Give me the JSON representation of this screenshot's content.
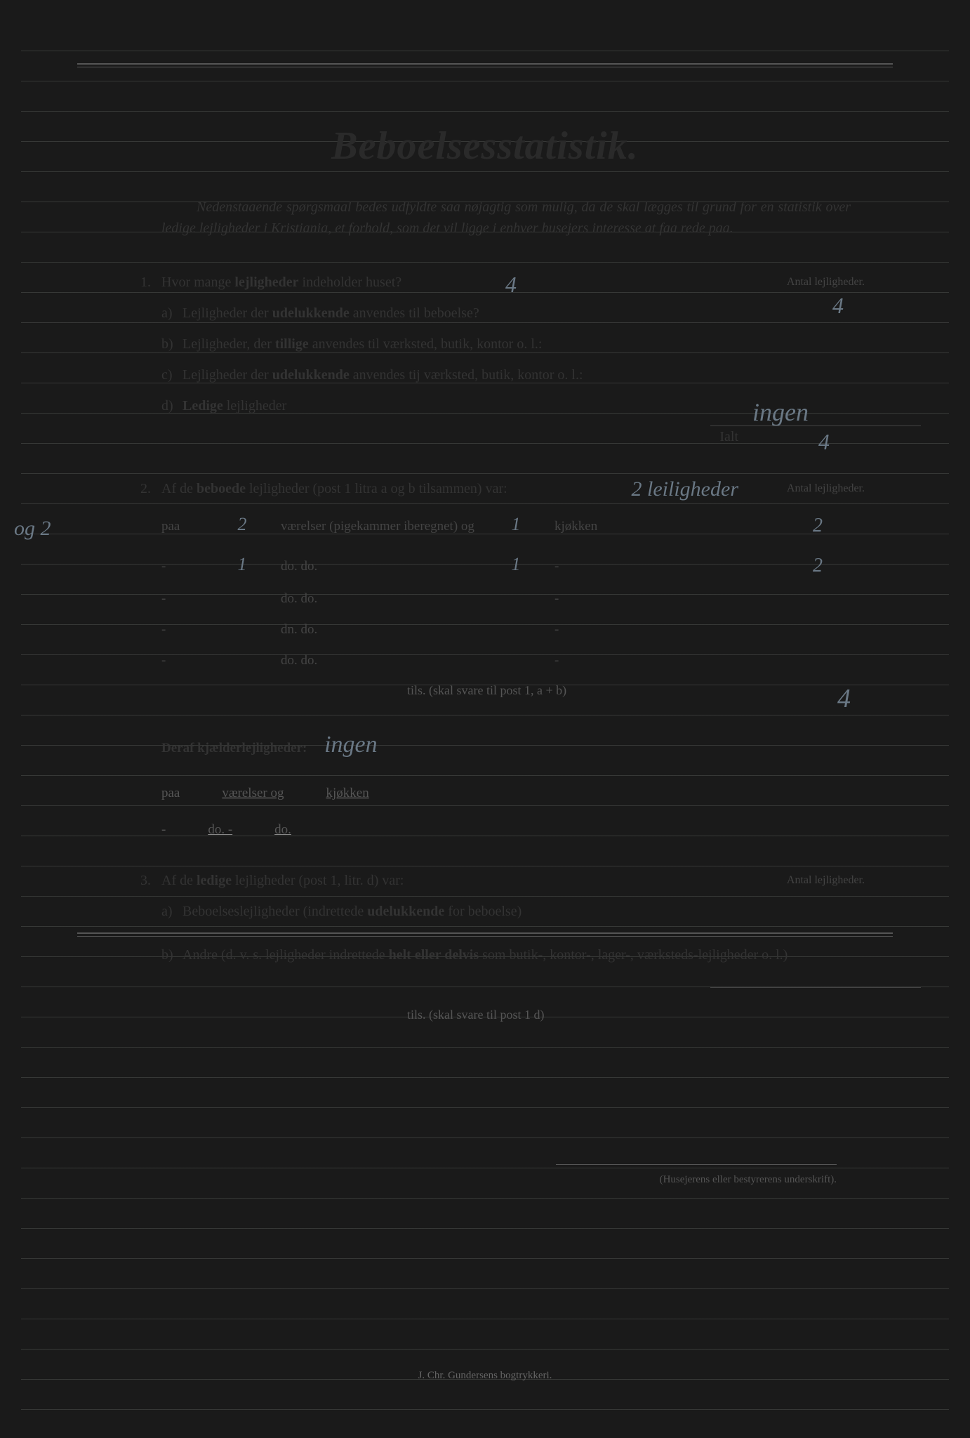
{
  "title": "Beboelsesstatistik.",
  "intro": "Nedenstaaende spørgsmaal bedes udfyldte saa nøjagtig som mulig, da de skal lægges til grund for en statistik over ledige lejligheder i Kristiania, et forhold, som det vil ligge i enhver husejers interesse at faa rede paa.",
  "q1": {
    "num": "1.",
    "text_pre": "Hvor mange ",
    "text_bold": "lejligheder",
    "text_post": " indeholder huset?",
    "answer_hw": "4",
    "right_label": "Antal lejligheder.",
    "right_answer_hw": "4",
    "a": {
      "letter": "a)",
      "pre": "Lejligheder der ",
      "bold": "udelukkende",
      "post": " anvendes til beboelse?"
    },
    "b": {
      "letter": "b)",
      "pre": "Lejligheder, der ",
      "bold": "tillige",
      "post": " anvendes til værksted, butik, kontor o. l.:"
    },
    "c": {
      "letter": "c)",
      "pre": "Lejligheder der ",
      "bold": "udelukkende",
      "post": " anvendes tij værksted, butik, kontor o. l.:"
    },
    "d": {
      "letter": "d)",
      "bold": "Ledige",
      "post": " lejligheder",
      "answer_hw": "ingen"
    },
    "ialt": "Ialt",
    "ialt_hw": "4"
  },
  "q2": {
    "num": "2.",
    "text_pre": "Af de ",
    "text_bold": "beboede",
    "text_post": " lejligheder (post 1 litra a og b tilsammen) var:",
    "answer_hw": "2 leiligheder",
    "right_label": "Antal lejligheder.",
    "margin_hw": "og 2",
    "rows": [
      {
        "paa": "paa",
        "n1": "2",
        "vae": "værelser (pigekammer iberegnet) og",
        "n2": "1",
        "kjok": "kjøkken",
        "ant": "2"
      },
      {
        "paa": "-",
        "n1": "1",
        "vae": "do.                          do.",
        "n2": "1",
        "kjok": "-",
        "ant": "2"
      },
      {
        "paa": "-",
        "n1": "",
        "vae": "do.                          do.",
        "n2": "",
        "kjok": "-",
        "ant": ""
      },
      {
        "paa": "-",
        "n1": "",
        "vae": "dn.                          do.",
        "n2": "",
        "kjok": "-",
        "ant": ""
      },
      {
        "paa": "-",
        "n1": "",
        "vae": "do.                          do.",
        "n2": "",
        "kjok": "-",
        "ant": ""
      }
    ],
    "tils": "tils. (skal svare til post 1, a + b)",
    "tils_hw": "4",
    "deraf": "Deraf kjælderlejligheder:",
    "deraf_hw": "ingen",
    "kjrows": [
      {
        "paa": "paa",
        "vae": "værelser og",
        "kjok": "kjøkken"
      },
      {
        "paa": "-",
        "vae": "do.        -",
        "kjok": "do."
      }
    ]
  },
  "q3": {
    "num": "3.",
    "text_pre": "Af de ",
    "text_bold": "ledige",
    "text_post": " lejligheder (post 1, litr. d) var:",
    "right_label": "Antal lejligheder.",
    "a": {
      "letter": "a)",
      "pre": "Beboelseslejligheder (indrettede ",
      "bold": "udelukkende",
      "post": " for beboelse)"
    },
    "b": {
      "letter": "b)",
      "pre": "Andre (d. v. s. lejligheder indrettede ",
      "bold": "helt eller delvis",
      "post": " som butik-, kontor-, lager-, værksteds-lejligheder o. l.)"
    },
    "tils": "tils. (skal svare til post 1 d)"
  },
  "signature_label": "(Husejerens eller bestyrerens underskrift).",
  "printer": "J. Chr. Gundersens bogtrykkeri."
}
